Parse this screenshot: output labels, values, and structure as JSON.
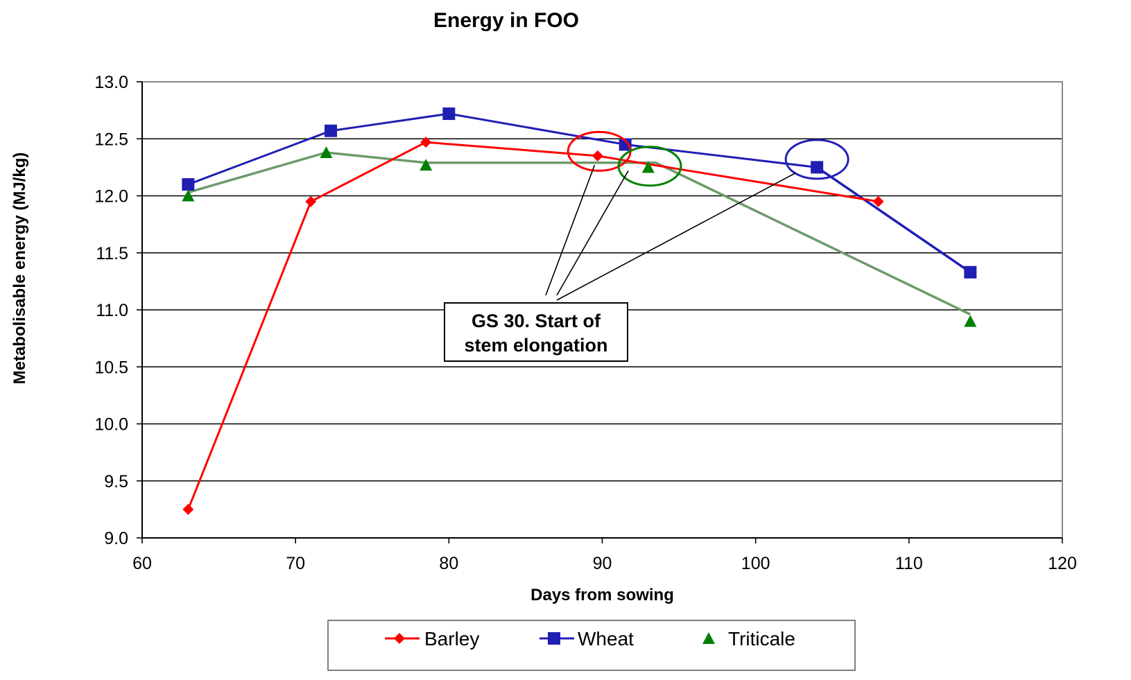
{
  "chart_data": {
    "type": "line",
    "title": "Energy in FOO",
    "xlabel": "Days from sowing",
    "ylabel": "Metabolisable energy (MJ/kg)",
    "xlim": [
      60,
      120
    ],
    "ylim": [
      9.0,
      13.0
    ],
    "x_ticks": [
      "60",
      "70",
      "80",
      "90",
      "100",
      "110",
      "120"
    ],
    "y_ticks": [
      "9.0",
      "9.5",
      "10.0",
      "10.5",
      "11.0",
      "11.5",
      "12.0",
      "12.5",
      "13.0"
    ],
    "grid": "horizontal",
    "legend_position": "bottom",
    "series": [
      {
        "name": "Barley",
        "color": "#ff0000",
        "marker": "diamond",
        "line": true,
        "x": [
          63,
          71,
          78.5,
          89.7,
          108
        ],
        "y": [
          9.25,
          11.95,
          12.47,
          12.35,
          11.95
        ]
      },
      {
        "name": "Wheat",
        "color": "#1f1fb4",
        "marker": "square",
        "line": true,
        "x": [
          63,
          72.3,
          80,
          91.5,
          104
        ],
        "y": [
          12.1,
          12.57,
          12.72,
          12.45,
          12.25
        ]
      },
      {
        "name": "Triticale",
        "color": "#008000",
        "marker": "triangle",
        "line": false,
        "x": [
          63,
          72,
          78.5,
          93,
          114
        ],
        "y": [
          12.0,
          12.38,
          12.27,
          12.25,
          10.9
        ]
      }
    ],
    "extra_lines": [
      {
        "label": "Triticale trend",
        "color": "#6d9a6b",
        "x": [
          63,
          72,
          78.5,
          93.5,
          114
        ],
        "y": [
          12.03,
          12.38,
          12.29,
          12.29,
          10.96
        ]
      },
      {
        "label": "Wheat extension",
        "color": "#1f1fb4",
        "x": [
          104,
          114
        ],
        "y": [
          12.25,
          11.33
        ],
        "marker_end": true
      }
    ],
    "highlight_circles": [
      {
        "color": "#ff0000",
        "x": 89.8,
        "y": 12.39
      },
      {
        "color": "#008000",
        "x": 93.1,
        "y": 12.26
      },
      {
        "color": "#1f1fb4",
        "x": 104,
        "y": 12.32
      }
    ],
    "annotation": {
      "lines": [
        "GS 30.  Start of",
        "stem elongation"
      ],
      "points_to": [
        {
          "x": 89.5,
          "y": 12.27
        },
        {
          "x": 91.7,
          "y": 12.22
        },
        {
          "x": 102.6,
          "y": 12.2
        }
      ]
    }
  }
}
